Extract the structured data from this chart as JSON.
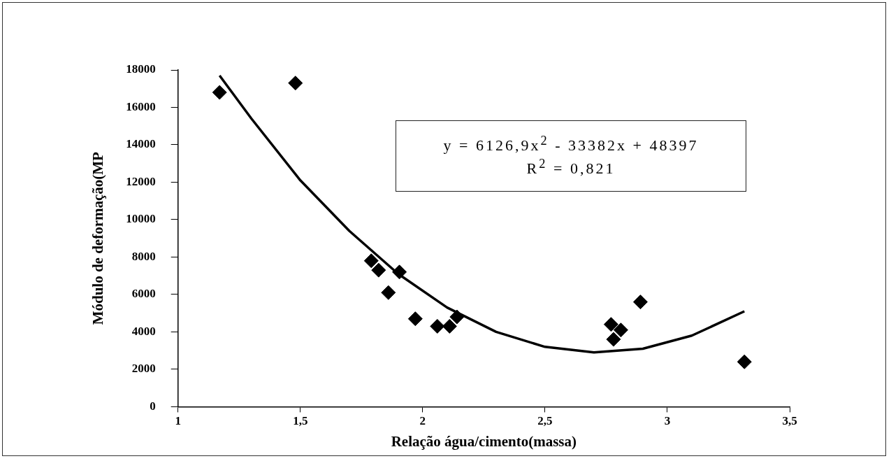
{
  "chart_data": {
    "type": "scatter",
    "xlabel": "Relação água/cimento(massa)",
    "ylabel": "Módulo de deformação(MP",
    "xlim": [
      1,
      3.5
    ],
    "xticks": [
      1,
      {
        "value": 1.5,
        "label": "1,5"
      },
      2,
      {
        "value": 2.5,
        "label": "2,5"
      },
      3,
      {
        "value": 3.5,
        "label": "3,5"
      }
    ],
    "ylim": [
      0,
      18000
    ],
    "yticks": [
      0,
      2000,
      4000,
      6000,
      8000,
      10000,
      12000,
      14000,
      16000,
      18000
    ],
    "grid": false,
    "legend": false,
    "marker": "diamond",
    "annotations": [
      "y = 6126,9x$^{2}$ - 33382x + 48397",
      "R$^{2}$ = 0,821"
    ],
    "series": [
      {
        "color": "#000000",
        "x": [
          1.17,
          1.48,
          1.79,
          1.82,
          1.905,
          1.86,
          1.97,
          2.06,
          2.11,
          2.14,
          2.89,
          2.77,
          2.81,
          2.78,
          3.315
        ],
        "values": [
          16800,
          17300,
          7800,
          7300,
          7200,
          6100,
          4700,
          4300,
          4300,
          4800,
          5600,
          4400,
          4100,
          3600,
          2400
        ]
      },
      {
        "type": "line",
        "color": "#000000",
        "marker": "none",
        "line_style": "solid",
        "x": [
          1.17,
          1.3,
          1.5,
          1.7,
          1.9,
          2.1,
          2.3,
          2.5,
          2.7,
          2.9,
          3.1,
          3.315
        ],
        "values": [
          17700,
          15400,
          12100,
          9400,
          7100,
          5300,
          4000,
          3200,
          2900,
          3100,
          3800,
          5100
        ]
      }
    ]
  }
}
